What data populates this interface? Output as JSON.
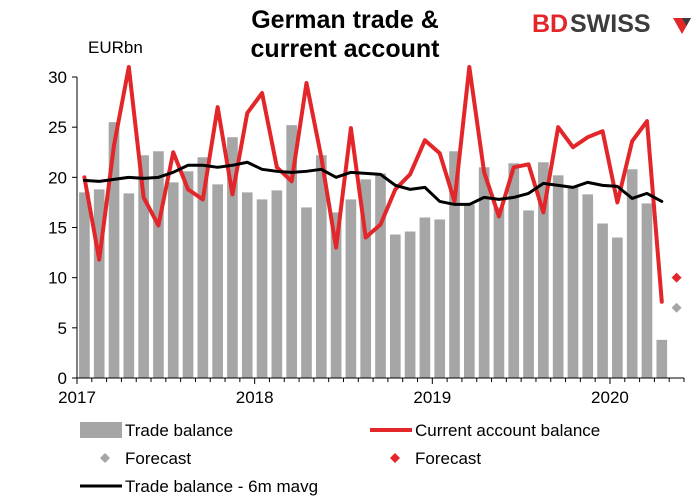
{
  "title_lines": [
    "German trade &",
    "current account"
  ],
  "logo": {
    "part1": "BD",
    "part2": "SWISS",
    "mark": "arrow-diamond-logo",
    "color_red": "#e3262a",
    "color_gray": "#3c3c3c"
  },
  "chart_data": {
    "type": "bar",
    "title": "German trade & current account",
    "ylabel": "EURbn",
    "ylim": [
      0,
      30
    ],
    "yticks": [
      0,
      5,
      10,
      15,
      20,
      25,
      30
    ],
    "xtick_labels": [
      {
        "label": "2017",
        "index": 0
      },
      {
        "label": "2018",
        "index": 12
      },
      {
        "label": "2019",
        "index": 24
      },
      {
        "label": "2020",
        "index": 36
      }
    ],
    "months": [
      "2017-01",
      "2017-02",
      "2017-03",
      "2017-04",
      "2017-05",
      "2017-06",
      "2017-07",
      "2017-08",
      "2017-09",
      "2017-10",
      "2017-11",
      "2017-12",
      "2018-01",
      "2018-02",
      "2018-03",
      "2018-04",
      "2018-05",
      "2018-06",
      "2018-07",
      "2018-08",
      "2018-09",
      "2018-10",
      "2018-11",
      "2018-12",
      "2019-01",
      "2019-02",
      "2019-03",
      "2019-04",
      "2019-05",
      "2019-06",
      "2019-07",
      "2019-08",
      "2019-09",
      "2019-10",
      "2019-11",
      "2019-12",
      "2020-01",
      "2020-02",
      "2020-03",
      "2020-04",
      "2020-05"
    ],
    "series": [
      {
        "name": "Trade balance",
        "type": "bar",
        "color": "#a6a6a6",
        "values": [
          18.5,
          18.8,
          25.5,
          18.4,
          22.2,
          22.6,
          19.5,
          20.6,
          22.0,
          19.3,
          24.0,
          18.5,
          17.8,
          18.7,
          25.2,
          17.0,
          22.2,
          16.5,
          17.8,
          19.8,
          20.4,
          14.3,
          14.6,
          16.0,
          15.8,
          22.6,
          17.3,
          21.0,
          17.0,
          21.4,
          16.7,
          21.5,
          20.2,
          19.1,
          18.3,
          15.4,
          14.0,
          20.8,
          17.4,
          3.8,
          null
        ]
      },
      {
        "name": "Current account balance",
        "type": "line",
        "color": "#e3262a",
        "values": [
          20.0,
          11.8,
          23.2,
          31.0,
          18.0,
          15.2,
          22.5,
          18.8,
          17.8,
          27.0,
          18.3,
          26.4,
          28.4,
          21.0,
          19.6,
          29.4,
          22.0,
          13.0,
          24.9,
          14.0,
          15.3,
          18.8,
          20.3,
          23.7,
          22.4,
          17.6,
          31.0,
          20.5,
          16.1,
          21.0,
          21.3,
          16.5,
          25.0,
          23.0,
          24.0,
          24.6,
          17.5,
          23.6,
          25.6,
          7.6,
          null
        ]
      },
      {
        "name": "Trade balance - 6m mavg",
        "type": "line",
        "color": "#000000",
        "values": [
          19.7,
          19.6,
          19.8,
          20.0,
          19.9,
          20.0,
          20.5,
          21.2,
          21.2,
          21.0,
          21.2,
          21.5,
          20.8,
          20.6,
          20.5,
          20.6,
          20.8,
          20.0,
          20.5,
          20.4,
          20.3,
          19.2,
          18.8,
          19.0,
          17.6,
          17.3,
          17.3,
          18.0,
          17.8,
          18.0,
          18.4,
          19.4,
          19.2,
          19.0,
          19.5,
          19.2,
          19.1,
          17.9,
          18.4,
          17.6,
          null
        ]
      },
      {
        "name": "Forecast",
        "type": "scatter",
        "of": "Trade balance",
        "color": "#a6a6a6",
        "points": [
          {
            "index": 40,
            "value": 7.0
          }
        ]
      },
      {
        "name": "Forecast",
        "type": "scatter",
        "of": "Current account balance",
        "color": "#e3262a",
        "points": [
          {
            "index": 40,
            "value": 10.0
          }
        ]
      }
    ],
    "legend": {
      "placement": "bottom",
      "entries": [
        {
          "label": "Trade balance",
          "kind": "bar",
          "color": "#a6a6a6"
        },
        {
          "label": "Current account balance",
          "kind": "line",
          "color": "#e3262a"
        },
        {
          "label": "Forecast",
          "kind": "diamond",
          "color": "#a6a6a6"
        },
        {
          "label": "Forecast",
          "kind": "diamond",
          "color": "#e3262a"
        },
        {
          "label": "Trade balance - 6m mavg",
          "kind": "line",
          "color": "#000000"
        }
      ]
    },
    "grid": false
  }
}
